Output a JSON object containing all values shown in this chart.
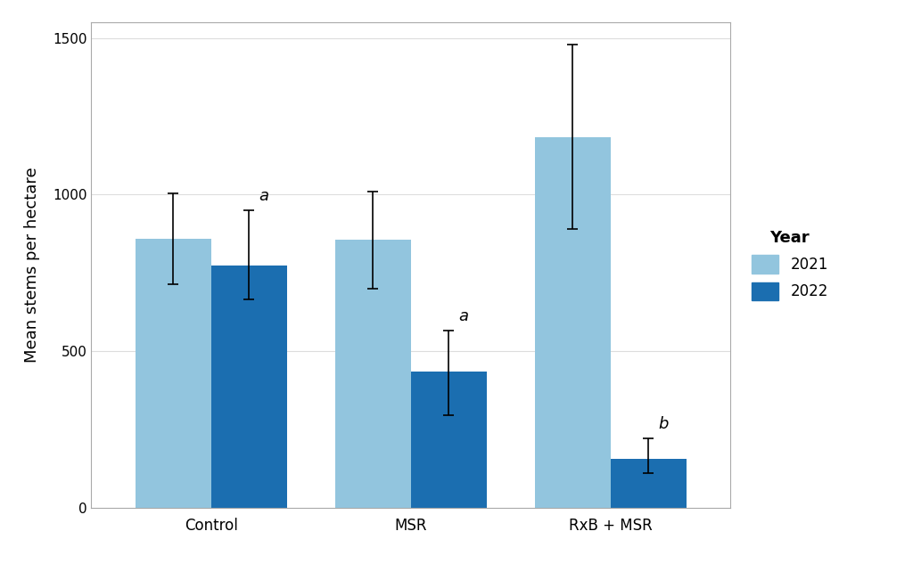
{
  "categories": [
    "Control",
    "MSR",
    "RxB + MSR"
  ],
  "values_2021": [
    860,
    855,
    1185
  ],
  "values_2022": [
    775,
    435,
    155
  ],
  "err_2021_upper": [
    145,
    155,
    295
  ],
  "err_2021_lower": [
    145,
    155,
    295
  ],
  "err_2022_upper": [
    175,
    130,
    65
  ],
  "err_2022_lower": [
    110,
    140,
    45
  ],
  "labels_2022": [
    "a",
    "a",
    "b"
  ],
  "color_2021": "#92C5DE",
  "color_2022": "#1B6EB0",
  "ylabel": "Mean stems per hectare",
  "legend_title": "Year",
  "legend_labels": [
    "2021",
    "2022"
  ],
  "ylim": [
    0,
    1550
  ],
  "yticks": [
    0,
    500,
    1000,
    1500
  ],
  "bar_width": 0.38,
  "background_color": "#FFFFFF",
  "grid_color": "#DDDDDD",
  "border_color": "#AAAAAA",
  "panel_bg": "#FFFFFF"
}
